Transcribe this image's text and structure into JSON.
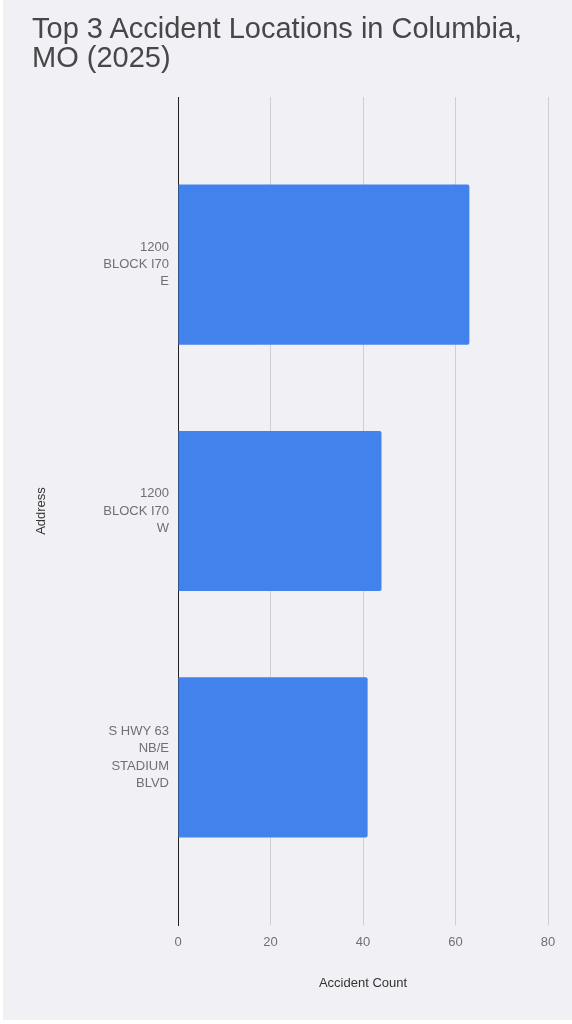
{
  "chart_data": {
    "type": "bar",
    "title": "Top 3 Accident Locations in Columbia, MO (2025)",
    "xlabel": "Accident Count",
    "ylabel": "Address",
    "orientation": "horizontal",
    "categories": [
      "1200 BLOCK I70 E",
      "1200 BLOCK I70 W",
      "S HWY 63 NB/E STADIUM BLVD"
    ],
    "values": [
      63,
      44,
      41
    ],
    "color": "#4282ed",
    "xlim": [
      0,
      80
    ],
    "xticks": [
      0,
      20,
      40,
      60,
      80
    ],
    "grid": "x"
  }
}
